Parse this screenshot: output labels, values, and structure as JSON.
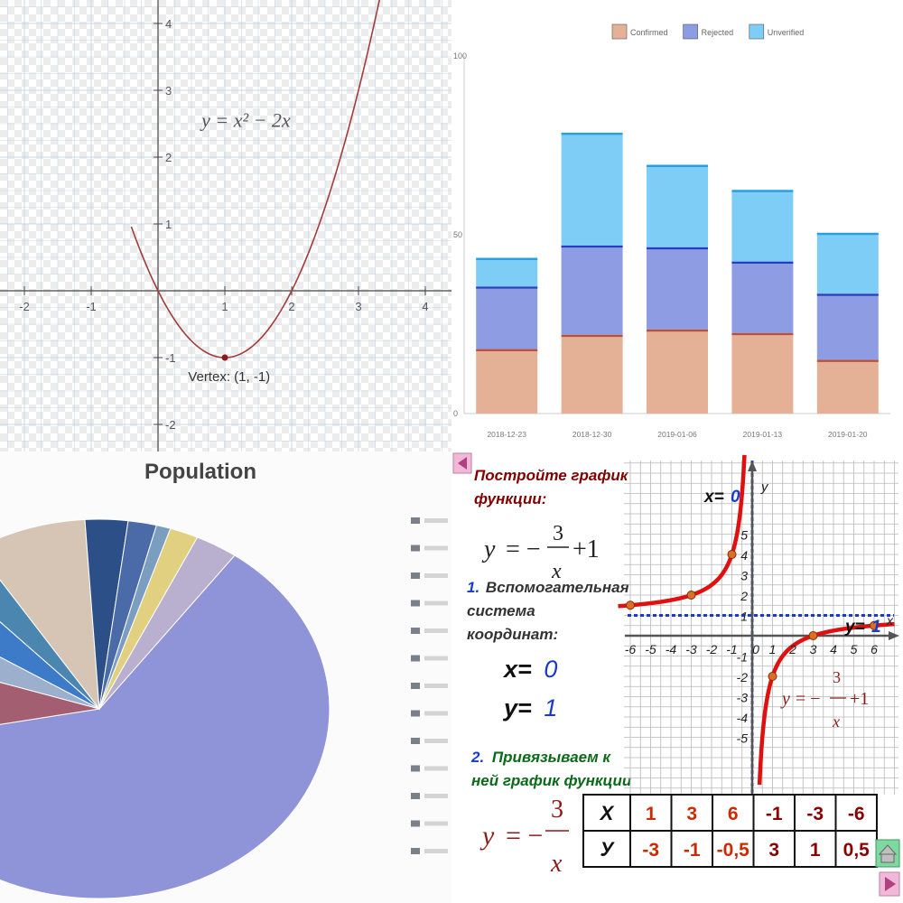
{
  "panels": {
    "parabola": {
      "equation": "y = x² − 2x",
      "vertex_label": "Vertex: (1, -1)",
      "x_ticks": [
        "-2",
        "-1",
        "1",
        "2",
        "3",
        "4"
      ],
      "y_ticks": [
        "4",
        "3",
        "2",
        "1",
        "-1",
        "-2"
      ]
    },
    "stacked": {
      "y_ticks": [
        "100",
        "50",
        "0"
      ]
    },
    "pie": {
      "title": "Population"
    },
    "hyperbola": {
      "task_line1": "Постройте график",
      "task_line2": "функции:",
      "step1_num": "1.",
      "step1_line1": "Вспомогательная",
      "step1_line2": "система",
      "step1_line3": "координат:",
      "x_eq_label": "x=",
      "x_eq_value": "0",
      "y_eq_label": "y=",
      "y_eq_value": "1",
      "step2_num": "2.",
      "step2_line1": "Привязываем к",
      "step2_line2": "ней график функции",
      "axis_x_name": "x",
      "axis_y_name": "y",
      "asym_x_label": "x=",
      "asym_x_value": "0",
      "asym_y_label": "y=",
      "asym_y_value": "1",
      "x_ticks": [
        "-6",
        "-5",
        "-4",
        "-3",
        "-2",
        "-1",
        "0",
        "1",
        "2",
        "3",
        "4",
        "5",
        "6"
      ],
      "y_ticks": [
        "5",
        "4",
        "3",
        "2",
        "1",
        "-1",
        "-2",
        "-3",
        "-4",
        "-5"
      ],
      "table_head_x": "X",
      "table_head_y": "У",
      "table_x": [
        "1",
        "3",
        "6",
        "-1",
        "-3",
        "-6"
      ],
      "table_y": [
        "-3",
        "-1",
        "-0,5",
        "3",
        "1",
        "0,5"
      ]
    }
  },
  "chart_data": [
    {
      "type": "line",
      "equation": "y = x^2 - 2x",
      "x": [
        -0.35,
        0,
        0.5,
        1,
        1.5,
        2,
        2.5,
        3,
        3.3
      ],
      "y": [
        0.82,
        0,
        -0.75,
        -1,
        -0.75,
        0,
        1.25,
        3,
        4.3
      ],
      "annotation": "Vertex: (1, -1)",
      "xlim": [
        -2.35,
        4.45
      ],
      "ylim": [
        -2.3,
        4.4
      ],
      "grid": true
    },
    {
      "type": "bar",
      "stacked": true,
      "categories": [
        "2018-12-23",
        "2018-12-30",
        "2019-01-06",
        "2019-01-13",
        "2019-01-20"
      ],
      "series": [
        {
          "name": "Confirmed",
          "values": [
            18,
            22,
            23.5,
            22.5,
            15
          ],
          "color": "#e5b196"
        },
        {
          "name": "Rejected",
          "values": [
            17.5,
            25,
            23,
            20,
            18.5
          ],
          "color": "#8e9ce4"
        },
        {
          "name": "Unverified",
          "values": [
            8,
            31.5,
            23,
            20,
            17
          ],
          "color": "#7ecdf7"
        }
      ],
      "ylim": [
        0,
        100
      ],
      "legend": "top",
      "grid": false
    },
    {
      "type": "pie",
      "title": "Population",
      "values": [
        62,
        8,
        4,
        4,
        3,
        8,
        3,
        2,
        1,
        2,
        3
      ],
      "colors": [
        "#8f93d8",
        "#a45e72",
        "#9cb0cd",
        "#3d7bc8",
        "#4a86b0",
        "#d6c4b4",
        "#2b4f86",
        "#4a6aa8",
        "#7b9ec0",
        "#e0d080",
        "#b9b0d0"
      ]
    },
    {
      "type": "line",
      "equation": "y = -3/x + 1",
      "x": [
        -6,
        -3,
        -1,
        1,
        3,
        6
      ],
      "y": [
        1.5,
        2,
        4,
        -2,
        0,
        0.5
      ],
      "asymptotes": {
        "x": 0,
        "y": 1
      },
      "xlim": [
        -6.3,
        6.7
      ],
      "ylim": [
        -6,
        6
      ],
      "grid": true
    }
  ]
}
